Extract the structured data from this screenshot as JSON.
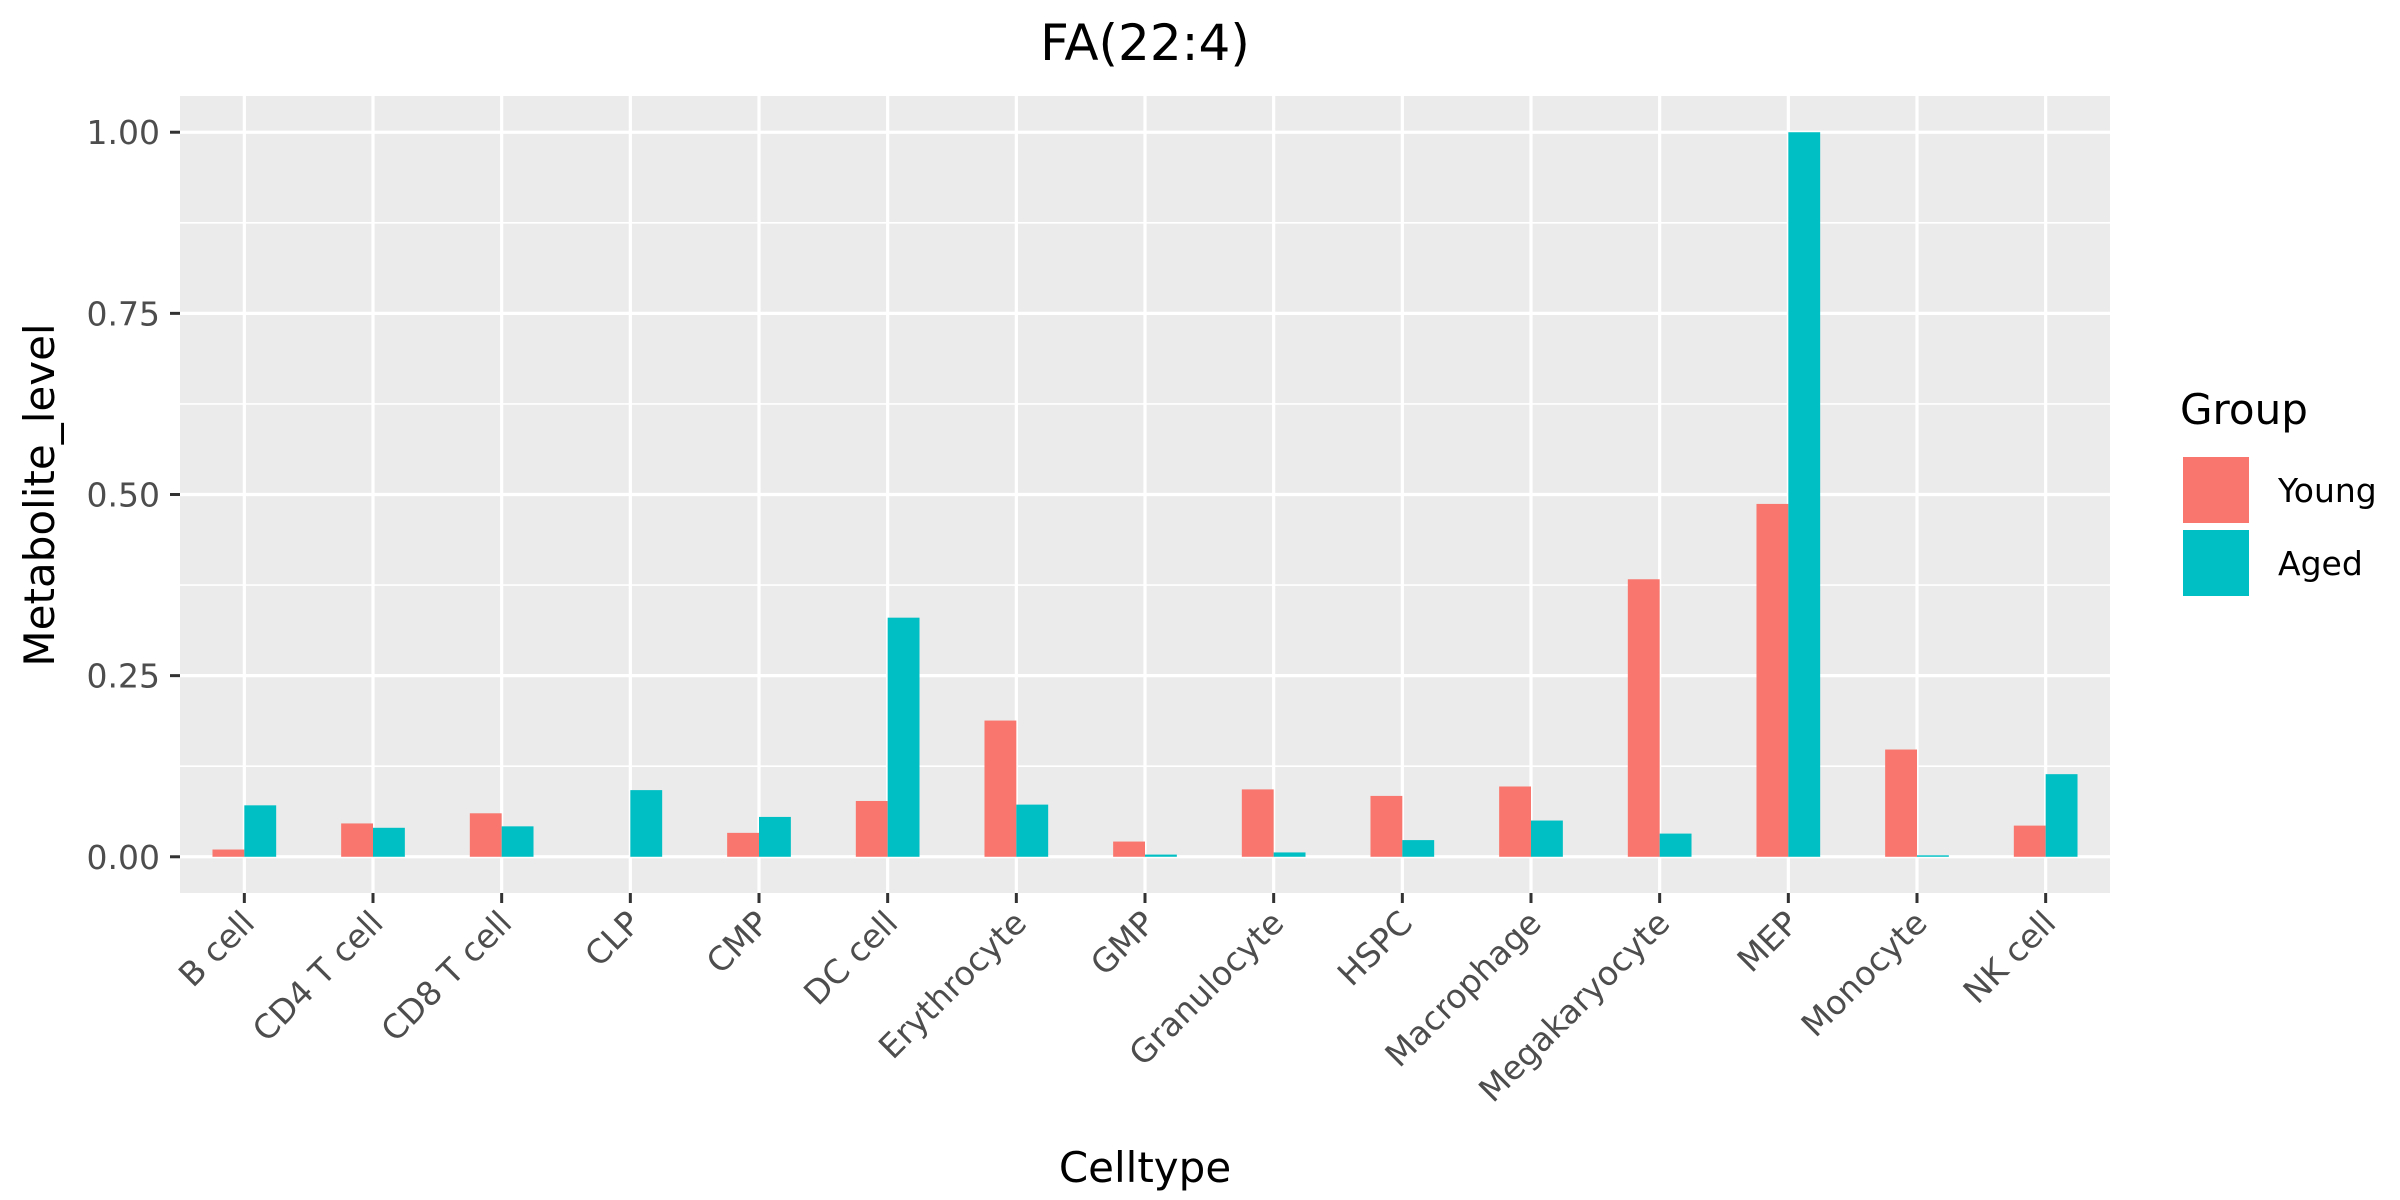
{
  "chart_data": {
    "type": "bar",
    "title": "FA(22:4)",
    "xlabel": "Celltype",
    "ylabel": "Metabolite_level",
    "categories": [
      "B cell",
      "CD4 T cell",
      "CD8 T cell",
      "CLP",
      "CMP",
      "DC cell",
      "Erythrocyte",
      "GMP",
      "Granulocyte",
      "HSPC",
      "Macrophage",
      "Megakaryocyte",
      "MEP",
      "Monocyte",
      "NK cell"
    ],
    "series": [
      {
        "name": "Young",
        "color": "#F8766D",
        "values": [
          0.01,
          0.046,
          0.06,
          0.0,
          0.033,
          0.077,
          0.188,
          0.021,
          0.093,
          0.084,
          0.097,
          0.383,
          0.487,
          0.148,
          0.043
        ]
      },
      {
        "name": "Aged",
        "color": "#00BFC4",
        "values": [
          0.071,
          0.04,
          0.042,
          0.092,
          0.055,
          0.33,
          0.072,
          0.003,
          0.006,
          0.023,
          0.05,
          0.032,
          1.0,
          0.002,
          0.114
        ]
      }
    ],
    "ylim": [
      -0.05,
      1.05
    ],
    "yticks": [
      0.0,
      0.25,
      0.5,
      0.75,
      1.0
    ],
    "ytick_labels": [
      "0.00",
      "0.25",
      "0.50",
      "0.75",
      "1.00"
    ],
    "grid": true,
    "panel_background": "#EBEBEB",
    "legend": {
      "title": "Group",
      "position": "right"
    }
  }
}
